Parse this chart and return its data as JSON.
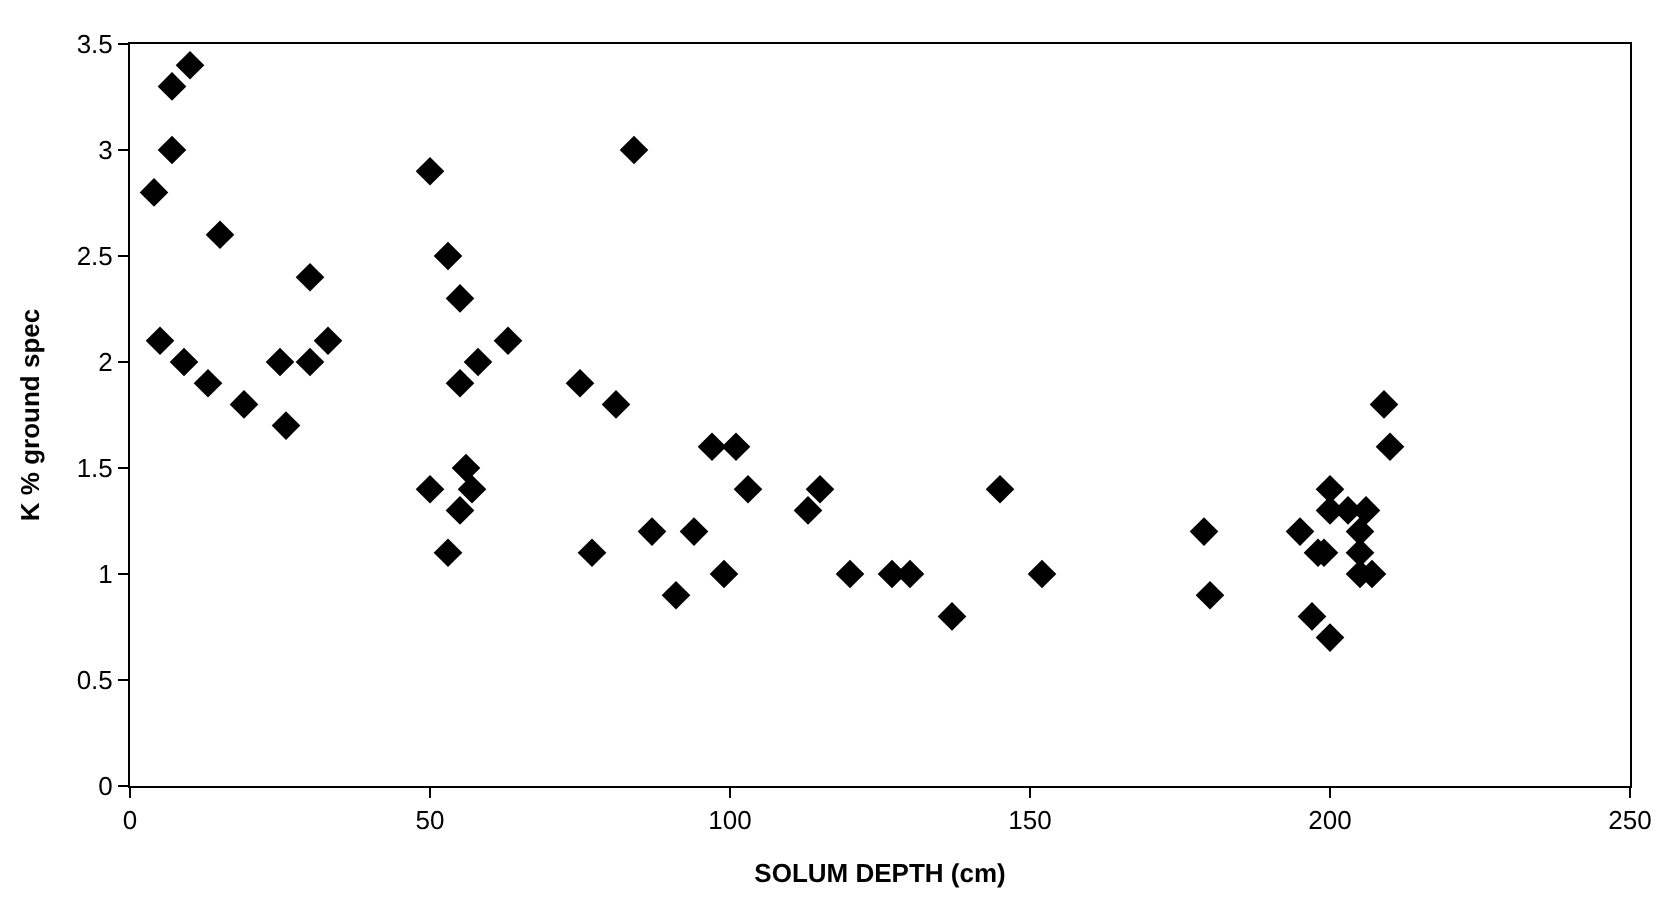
{
  "chart_data": {
    "type": "scatter",
    "xlabel": "SOLUM DEPTH (cm)",
    "ylabel": "K % ground spec",
    "x": [
      4,
      7,
      7,
      10,
      5,
      9,
      13,
      15,
      19,
      25,
      26,
      30,
      30,
      33,
      50,
      50,
      53,
      53,
      55,
      55,
      55,
      56,
      57,
      58,
      63,
      75,
      77,
      81,
      84,
      87,
      91,
      94,
      97,
      99,
      101,
      103,
      113,
      115,
      120,
      127,
      130,
      137,
      145,
      152,
      179,
      180,
      195,
      197,
      198,
      199,
      200,
      200,
      200,
      203,
      205,
      205,
      205,
      206,
      207,
      209,
      210
    ],
    "values": [
      2.8,
      3.3,
      3.0,
      3.4,
      2.1,
      2.0,
      1.9,
      2.6,
      1.8,
      2.0,
      1.7,
      2.4,
      2.0,
      2.1,
      2.9,
      1.4,
      2.5,
      1.1,
      2.3,
      1.9,
      1.3,
      1.5,
      1.4,
      2.0,
      2.1,
      1.9,
      1.1,
      1.8,
      3.0,
      1.2,
      0.9,
      1.2,
      1.6,
      1.0,
      1.6,
      1.4,
      1.3,
      1.4,
      1.0,
      1.0,
      1.0,
      0.8,
      1.4,
      1.0,
      1.2,
      0.9,
      1.2,
      0.8,
      1.1,
      1.1,
      0.7,
      1.4,
      1.3,
      1.3,
      1.2,
      1.1,
      1.0,
      1.3,
      1.0,
      1.8,
      1.6
    ],
    "color": "#000000",
    "marker": "diamond",
    "xlim": [
      0,
      250
    ],
    "xticks": [
      0,
      50,
      100,
      150,
      200,
      250
    ],
    "ylim": [
      0,
      3.5
    ],
    "yticks": [
      0,
      0.5,
      1,
      1.5,
      2,
      2.5,
      3,
      3.5
    ]
  }
}
